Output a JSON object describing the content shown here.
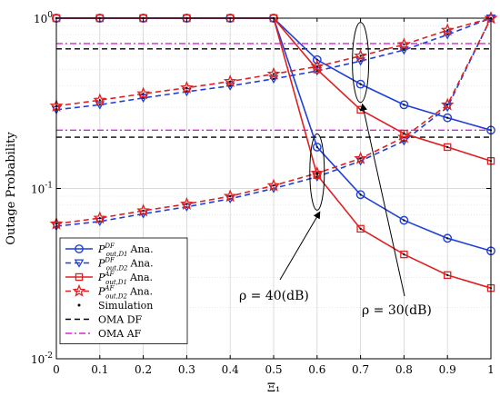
{
  "chart_data": {
    "type": "line",
    "x": [
      0,
      0.1,
      0.2,
      0.3,
      0.4,
      0.5,
      0.6,
      0.7,
      0.8,
      0.9,
      1
    ],
    "xticks": [
      "0",
      "0.1",
      "0.2",
      "0.3",
      "0.4",
      "0.5",
      "0.6",
      "0.7",
      "0.8",
      "0.9",
      "1"
    ],
    "xlabel": "Ξ₁",
    "ylabel": "Outage Probability",
    "xlim": [
      0,
      1
    ],
    "ylim": [
      0.01,
      1
    ],
    "yscale": "log",
    "yticks": [
      {
        "value": 0.01,
        "base": "10",
        "exp": "-2"
      },
      {
        "value": 0.1,
        "base": "10",
        "exp": "-1"
      },
      {
        "value": 1,
        "base": "10",
        "exp": "0"
      }
    ],
    "grid": true,
    "legend_position": "bottom-left",
    "series": [
      {
        "group": "ρ = 40(dB)",
        "legend_main": "P",
        "legend_sup": "DF",
        "legend_sub": "out,D1",
        "legend_suffix": "Ana.",
        "color": "#1f3fd8",
        "dash": "solid",
        "marker": "circle",
        "values": [
          1,
          1,
          1,
          1,
          1,
          1,
          0.175,
          0.092,
          0.065,
          0.051,
          0.043
        ]
      },
      {
        "group": "ρ = 40(dB)",
        "legend_main": "P",
        "legend_sup": "DF",
        "legend_sub": "out,D2",
        "legend_suffix": "Ana.",
        "color": "#1f3fd8",
        "dash": "dashed",
        "marker": "triangle-down",
        "values": [
          0.06,
          0.064,
          0.071,
          0.078,
          0.087,
          0.1,
          0.117,
          0.145,
          0.19,
          0.3,
          1
        ]
      },
      {
        "group": "ρ = 40(dB)",
        "legend_main": "P",
        "legend_sup": "AF",
        "legend_sub": "out,D1",
        "legend_suffix": "Ana.",
        "color": "#e02020",
        "dash": "solid",
        "marker": "square",
        "values": [
          1,
          1,
          1,
          1,
          1,
          1,
          0.12,
          0.058,
          0.041,
          0.031,
          0.026
        ]
      },
      {
        "group": "ρ = 40(dB)",
        "legend_main": "P",
        "legend_sup": "AF",
        "legend_sub": "out,D2",
        "legend_suffix": "Ana.",
        "color": "#e02020",
        "dash": "dashed",
        "marker": "star",
        "values": [
          0.062,
          0.067,
          0.074,
          0.081,
          0.09,
          0.104,
          0.123,
          0.15,
          0.2,
          0.31,
          1
        ]
      },
      {
        "group": "ρ = 30(dB)",
        "legend_main": "",
        "color": "#1f3fd8",
        "dash": "solid",
        "marker": "circle",
        "values": [
          1,
          1,
          1,
          1,
          1,
          1,
          0.57,
          0.41,
          0.31,
          0.26,
          0.22
        ]
      },
      {
        "group": "ρ = 30(dB)",
        "legend_main": "",
        "color": "#1f3fd8",
        "dash": "dashed",
        "marker": "triangle-down",
        "values": [
          0.29,
          0.31,
          0.34,
          0.37,
          0.4,
          0.44,
          0.49,
          0.56,
          0.65,
          0.8,
          1
        ]
      },
      {
        "group": "ρ = 30(dB)",
        "legend_main": "",
        "color": "#e02020",
        "dash": "solid",
        "marker": "square",
        "values": [
          1,
          1,
          1,
          1,
          1,
          1,
          0.5,
          0.29,
          0.21,
          0.175,
          0.145
        ]
      },
      {
        "group": "ρ = 30(dB)",
        "legend_main": "",
        "color": "#e02020",
        "dash": "dashed",
        "marker": "star",
        "values": [
          0.305,
          0.33,
          0.36,
          0.39,
          0.425,
          0.47,
          0.52,
          0.6,
          0.7,
          0.85,
          1
        ]
      }
    ],
    "reference_lines": [
      {
        "name": "OMA DF",
        "color": "#000000",
        "dash": "dashed",
        "values": [
          0.66,
          0.2
        ]
      },
      {
        "name": "OMA AF",
        "color": "#e020e0",
        "dash": "dashdot",
        "values": [
          0.71,
          0.22
        ]
      }
    ],
    "simulation_label": "Simulation",
    "annotations": [
      {
        "text": "ρ = 40(dB)",
        "target_x": 0.6,
        "ellipse_y_center": 0.125
      },
      {
        "text": "ρ = 30(dB)",
        "target_x": 0.7,
        "ellipse_y_center": 0.55
      }
    ]
  }
}
